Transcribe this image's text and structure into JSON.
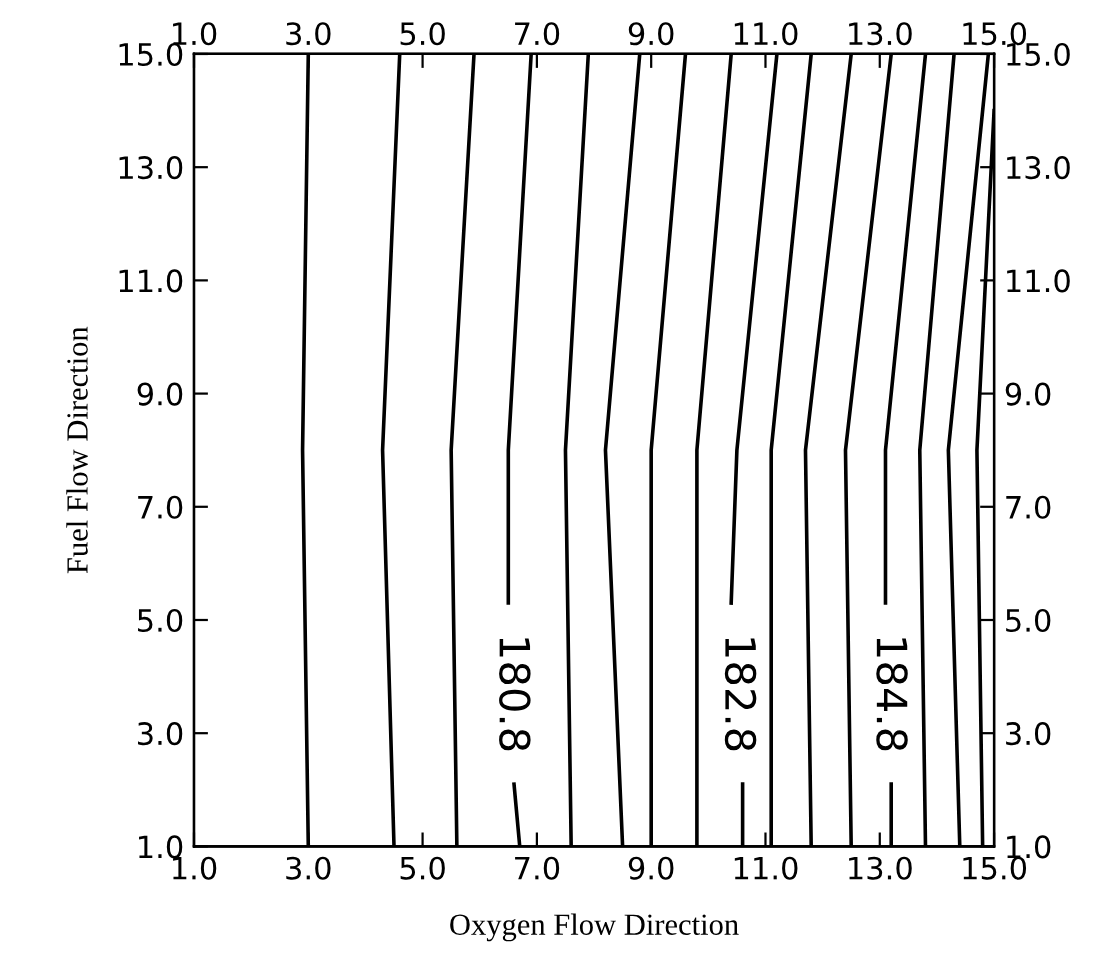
{
  "chart_data": {
    "type": "line",
    "xlabel": "Oxygen Flow Direction",
    "ylabel": "Fuel Flow Direction",
    "xlim": [
      1,
      15
    ],
    "ylim": [
      1,
      15
    ],
    "x2lim": [
      1,
      15
    ],
    "y2lim": [
      1,
      15
    ],
    "xticks": [
      {
        "value": 1,
        "label": "1.0"
      },
      {
        "value": 3,
        "label": "3.0"
      },
      {
        "value": 5,
        "label": "5.0"
      },
      {
        "value": 7,
        "label": "7.0"
      },
      {
        "value": 9,
        "label": "9.0"
      },
      {
        "value": 11,
        "label": "11.0"
      },
      {
        "value": 13,
        "label": "13.0"
      },
      {
        "value": 15,
        "label": "15.0"
      }
    ],
    "x2ticks": [
      {
        "value": 1,
        "label": "1.0"
      },
      {
        "value": 3,
        "label": "3.0"
      },
      {
        "value": 5,
        "label": "5.0"
      },
      {
        "value": 7,
        "label": "7.0"
      },
      {
        "value": 9,
        "label": "9.0"
      },
      {
        "value": 11,
        "label": "11.0"
      },
      {
        "value": 13,
        "label": "13.0"
      },
      {
        "value": 15,
        "label": "15.0"
      }
    ],
    "yticks": [
      {
        "value": 1,
        "label": "1.0"
      },
      {
        "value": 3,
        "label": "3.0"
      },
      {
        "value": 5,
        "label": "5.0"
      },
      {
        "value": 7,
        "label": "7.0"
      },
      {
        "value": 9,
        "label": "9.0"
      },
      {
        "value": 11,
        "label": "11.0"
      },
      {
        "value": 13,
        "label": "13.0"
      },
      {
        "value": 15,
        "label": "15.0"
      }
    ],
    "y2ticks": [
      {
        "value": 1,
        "label": "1.0"
      },
      {
        "value": 3,
        "label": "3.0"
      },
      {
        "value": 5,
        "label": "5.0"
      },
      {
        "value": 7,
        "label": "7.0"
      },
      {
        "value": 9,
        "label": "9.0"
      },
      {
        "value": 11,
        "label": "11.0"
      },
      {
        "value": 13,
        "label": "13.0"
      },
      {
        "value": 15,
        "label": "15.0"
      }
    ],
    "grid": false,
    "legend": false,
    "marker": "none",
    "line_style": "solid",
    "series": [
      {
        "color": "#000000",
        "x": [
          3.0,
          2.9,
          3.0
        ],
        "values": [
          15,
          8,
          1
        ]
      },
      {
        "color": "#000000",
        "x": [
          4.6,
          4.3,
          4.5
        ],
        "values": [
          15,
          8,
          1
        ]
      },
      {
        "color": "#000000",
        "x": [
          5.9,
          5.5,
          5.6
        ],
        "values": [
          15,
          8,
          1
        ]
      },
      {
        "name": "180.8",
        "color": "#000000",
        "x": [
          6.9,
          6.5,
          6.5,
          null,
          6.6,
          6.7
        ],
        "values": [
          15,
          8,
          5.3,
          null,
          2.1,
          1
        ]
      },
      {
        "color": "#000000",
        "x": [
          7.9,
          7.5,
          7.6
        ],
        "values": [
          15,
          8,
          1
        ]
      },
      {
        "color": "#000000",
        "x": [
          8.8,
          8.2,
          8.5
        ],
        "values": [
          15,
          8,
          1
        ]
      },
      {
        "color": "#000000",
        "x": [
          9.6,
          9.0,
          9.0
        ],
        "values": [
          15,
          8,
          1
        ]
      },
      {
        "color": "#000000",
        "x": [
          10.4,
          9.8,
          9.8
        ],
        "values": [
          15,
          8,
          1
        ]
      },
      {
        "name": "182.8",
        "color": "#000000",
        "x": [
          11.2,
          10.5,
          10.4,
          null,
          10.6,
          10.6
        ],
        "values": [
          15,
          8,
          5.3,
          null,
          2.1,
          1
        ]
      },
      {
        "color": "#000000",
        "x": [
          11.8,
          11.1,
          11.1
        ],
        "values": [
          15,
          8,
          1
        ]
      },
      {
        "color": "#000000",
        "x": [
          12.5,
          11.7,
          11.8
        ],
        "values": [
          15,
          8,
          1
        ]
      },
      {
        "color": "#000000",
        "x": [
          13.2,
          12.4,
          12.5
        ],
        "values": [
          15,
          8,
          1
        ]
      },
      {
        "name": "184.8",
        "color": "#000000",
        "x": [
          13.8,
          13.1,
          13.1,
          null,
          13.2,
          13.2
        ],
        "values": [
          15,
          8,
          5.3,
          null,
          2.1,
          1
        ]
      },
      {
        "color": "#000000",
        "x": [
          14.3,
          13.7,
          13.8
        ],
        "values": [
          15,
          8,
          1
        ]
      },
      {
        "color": "#000000",
        "x": [
          14.9,
          14.2,
          14.4
        ],
        "values": [
          15,
          8,
          1
        ]
      },
      {
        "color": "#000000",
        "x": [
          15.0,
          14.7,
          14.8
        ],
        "values": [
          14,
          8,
          1
        ]
      }
    ]
  }
}
